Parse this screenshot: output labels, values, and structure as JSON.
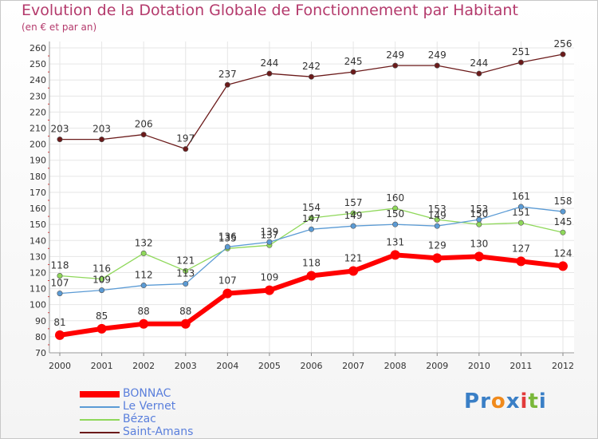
{
  "chart_data": {
    "type": "line",
    "title": "Evolution de la Dotation Globale de Fonctionnement par Habitant",
    "subtitle": "(en € et par an)",
    "xlabel": "",
    "ylabel": "",
    "x": [
      "2000",
      "2001",
      "2002",
      "2003",
      "2004",
      "2005",
      "2006",
      "2007",
      "2008",
      "2009",
      "2010",
      "2011",
      "2012"
    ],
    "ylim": [
      70,
      260
    ],
    "yticks": [
      70,
      80,
      90,
      100,
      110,
      120,
      130,
      140,
      150,
      160,
      170,
      180,
      190,
      200,
      210,
      220,
      230,
      240,
      250,
      260
    ],
    "grid": true,
    "legend_position": "bottom-left",
    "series": [
      {
        "name": "BONNAC",
        "color": "#ff0000",
        "values": [
          81,
          85,
          88,
          88,
          107,
          109,
          118,
          121,
          131,
          129,
          130,
          127,
          124
        ]
      },
      {
        "name": "Le Vernet",
        "color": "#5b9bd5",
        "values": [
          107,
          109,
          112,
          113,
          136,
          139,
          147,
          149,
          150,
          149,
          153,
          161,
          158
        ]
      },
      {
        "name": "Bézac",
        "color": "#8fd85a",
        "values": [
          118,
          116,
          132,
          121,
          135,
          137,
          154,
          157,
          160,
          153,
          150,
          151,
          145
        ]
      },
      {
        "name": "Saint-Amans",
        "color": "#6b1a1a",
        "values": [
          203,
          203,
          206,
          197,
          237,
          244,
          242,
          245,
          249,
          249,
          244,
          251,
          256
        ]
      }
    ]
  },
  "logo": {
    "letters": [
      "P",
      "r",
      "o",
      "x",
      "i",
      "t",
      "i"
    ],
    "colors": [
      "#3a7fc6",
      "#3a7fc6",
      "#f08a1c",
      "#3a7fc6",
      "#e23b3b",
      "#7ab83a",
      "#3a7fc6"
    ]
  }
}
